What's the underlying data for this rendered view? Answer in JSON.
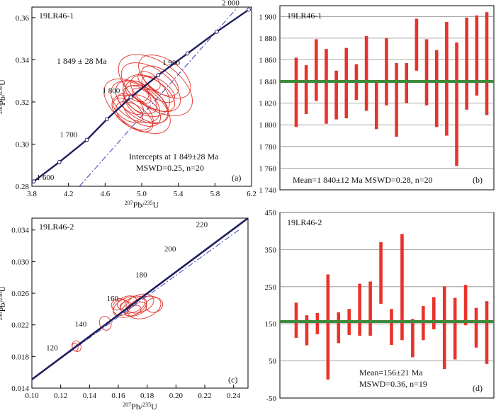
{
  "chart_data": [
    {
      "panel": "a",
      "type": "scatter",
      "sample": "19LR46-1",
      "panel_label": "(a)",
      "xlabel_pre": "207",
      "xlabel_mid": "Pb/",
      "xlabel_pre2": "235",
      "xlabel_post": "U",
      "ylabel_pre": "206",
      "ylabel_mid": "Pb/",
      "ylabel_pre2": "238",
      "ylabel_post": "U",
      "xlim": [
        3.8,
        6.2
      ],
      "ylim": [
        0.28,
        0.365
      ],
      "xticks": [
        3.8,
        4.2,
        4.6,
        5.0,
        5.4,
        5.8,
        6.2
      ],
      "xtick_labels": [
        "3.8",
        "4.2",
        "4.6",
        "5.0",
        "5.4",
        "5.8",
        "6.2"
      ],
      "yticks": [
        0.28,
        0.3,
        0.32,
        0.34,
        0.36
      ],
      "ytick_labels": [
        "0.28",
        "0.30",
        "0.32",
        "0.34",
        "0.36"
      ],
      "age_text": "1 849 ± 28 Ma",
      "intercept_text": "Intercepts at  1 849±28 Ma",
      "mswd_text": "MSWD=0.25, n=20",
      "concordia_points": [
        {
          "label": "1 600",
          "x": 3.82,
          "y": 0.2823
        },
        {
          "label": "",
          "x": 4.1,
          "y": 0.2915
        },
        {
          "label": "1 700",
          "x": 4.4,
          "y": 0.302
        },
        {
          "label": "",
          "x": 4.62,
          "y": 0.3118
        },
        {
          "label": "1 800",
          "x": 4.88,
          "y": 0.3222
        },
        {
          "label": "1 900",
          "x": 5.18,
          "y": 0.3327
        },
        {
          "label": "",
          "x": 5.5,
          "y": 0.343
        },
        {
          "label": "",
          "x": 5.82,
          "y": 0.3533
        },
        {
          "label": "2 000",
          "x": 6.17,
          "y": 0.3638
        }
      ],
      "discordia": {
        "x1": 4.32,
        "y1": 0.28,
        "x2": 6.05,
        "y2": 0.365
      },
      "ellipses": [
        {
          "x": 5.0,
          "y": 0.32,
          "rx": 0.18,
          "ry": 0.014
        },
        {
          "x": 4.95,
          "y": 0.318,
          "rx": 0.22,
          "ry": 0.018
        },
        {
          "x": 5.05,
          "y": 0.323,
          "rx": 0.2,
          "ry": 0.012
        },
        {
          "x": 4.9,
          "y": 0.315,
          "rx": 0.15,
          "ry": 0.011
        },
        {
          "x": 5.1,
          "y": 0.327,
          "rx": 0.2,
          "ry": 0.016
        },
        {
          "x": 5.15,
          "y": 0.328,
          "rx": 0.25,
          "ry": 0.02
        },
        {
          "x": 4.85,
          "y": 0.316,
          "rx": 0.1,
          "ry": 0.008
        },
        {
          "x": 5.2,
          "y": 0.33,
          "rx": 0.12,
          "ry": 0.01
        },
        {
          "x": 4.98,
          "y": 0.321,
          "rx": 0.12,
          "ry": 0.009
        },
        {
          "x": 5.05,
          "y": 0.319,
          "rx": 0.16,
          "ry": 0.012
        },
        {
          "x": 4.92,
          "y": 0.313,
          "rx": 0.12,
          "ry": 0.01
        },
        {
          "x": 5.12,
          "y": 0.324,
          "rx": 0.14,
          "ry": 0.012
        },
        {
          "x": 4.95,
          "y": 0.325,
          "rx": 0.1,
          "ry": 0.006
        },
        {
          "x": 5.0,
          "y": 0.316,
          "rx": 0.14,
          "ry": 0.01
        },
        {
          "x": 5.08,
          "y": 0.33,
          "rx": 0.08,
          "ry": 0.006
        },
        {
          "x": 5.25,
          "y": 0.332,
          "rx": 0.18,
          "ry": 0.014
        },
        {
          "x": 4.88,
          "y": 0.319,
          "rx": 0.08,
          "ry": 0.007
        },
        {
          "x": 5.0,
          "y": 0.323,
          "rx": 0.06,
          "ry": 0.005
        },
        {
          "x": 5.18,
          "y": 0.326,
          "rx": 0.1,
          "ry": 0.009
        },
        {
          "x": 4.93,
          "y": 0.32,
          "rx": 0.18,
          "ry": 0.013
        }
      ]
    },
    {
      "panel": "b",
      "type": "bar",
      "sample": "19LR46-1",
      "panel_label": "(b)",
      "ylim": [
        1740,
        1910
      ],
      "yticks": [
        1740,
        1760,
        1780,
        1800,
        1820,
        1840,
        1860,
        1880,
        1900
      ],
      "ytick_labels": [
        "1 740",
        "1 760",
        "1 780",
        "1 800",
        "1 820",
        "1 840",
        "1 860",
        "1 880",
        "1 900"
      ],
      "mean": 1840,
      "mean_text": "Mean=1 840±12 Ma   MSWD=0.28, n=20",
      "bars": [
        [
          1798,
          1862
        ],
        [
          1810,
          1855
        ],
        [
          1822,
          1879
        ],
        [
          1801,
          1870
        ],
        [
          1805,
          1850
        ],
        [
          1806,
          1871
        ],
        [
          1823,
          1856
        ],
        [
          1813,
          1882
        ],
        [
          1796,
          1840
        ],
        [
          1818,
          1880
        ],
        [
          1789,
          1857
        ],
        [
          1820,
          1857
        ],
        [
          1850,
          1898
        ],
        [
          1818,
          1879
        ],
        [
          1798,
          1869
        ],
        [
          1790,
          1895
        ],
        [
          1762,
          1876
        ],
        [
          1814,
          1899
        ],
        [
          1827,
          1901
        ],
        [
          1809,
          1904
        ]
      ]
    },
    {
      "panel": "c",
      "type": "scatter",
      "sample": "19LR46-2",
      "panel_label": "(c)",
      "xlabel_pre": "207",
      "xlabel_mid": "Pb/",
      "xlabel_pre2": "235",
      "xlabel_post": "U",
      "ylabel_pre": "206",
      "ylabel_mid": "Pb/",
      "ylabel_pre2": "238",
      "ylabel_post": "U",
      "xlim": [
        0.1,
        0.25
      ],
      "ylim": [
        0.014,
        0.0355
      ],
      "xticks": [
        0.1,
        0.12,
        0.14,
        0.16,
        0.18,
        0.2,
        0.22,
        0.24
      ],
      "xtick_labels": [
        "0.10",
        "0.12",
        "0.14",
        "0.16",
        "0.18",
        "0.20",
        "0.22",
        "0.24"
      ],
      "yticks": [
        0.014,
        0.018,
        0.022,
        0.026,
        0.03,
        0.034
      ],
      "ytick_labels": [
        "0.014",
        "0.018",
        "0.022",
        "0.026",
        "0.030",
        "0.034"
      ],
      "concordia_line": {
        "x1": 0.1,
        "y1": 0.0151,
        "x2": 0.25,
        "y2": 0.0355
      },
      "age_labels": [
        {
          "label": "120",
          "x": 0.118,
          "y": 0.0188
        },
        {
          "label": "140",
          "x": 0.138,
          "y": 0.0218
        },
        {
          "label": "160",
          "x": 0.16,
          "y": 0.025
        },
        {
          "label": "180",
          "x": 0.18,
          "y": 0.028
        },
        {
          "label": "200",
          "x": 0.2,
          "y": 0.0313
        },
        {
          "label": "220",
          "x": 0.222,
          "y": 0.0344
        }
      ],
      "ellipses": [
        {
          "x": 0.131,
          "y": 0.0193,
          "rx": 0.003,
          "ry": 0.0007
        },
        {
          "x": 0.13,
          "y": 0.0192,
          "rx": 0.002,
          "ry": 0.0005
        },
        {
          "x": 0.151,
          "y": 0.0222,
          "rx": 0.004,
          "ry": 0.0009
        },
        {
          "x": 0.168,
          "y": 0.0243,
          "rx": 0.012,
          "ry": 0.0012
        },
        {
          "x": 0.17,
          "y": 0.0245,
          "rx": 0.009,
          "ry": 0.0009
        },
        {
          "x": 0.162,
          "y": 0.0242,
          "rx": 0.006,
          "ry": 0.001
        },
        {
          "x": 0.175,
          "y": 0.0247,
          "rx": 0.01,
          "ry": 0.0011
        },
        {
          "x": 0.166,
          "y": 0.0248,
          "rx": 0.007,
          "ry": 0.0008
        },
        {
          "x": 0.172,
          "y": 0.024,
          "rx": 0.008,
          "ry": 0.0008
        },
        {
          "x": 0.16,
          "y": 0.0246,
          "rx": 0.005,
          "ry": 0.0007
        },
        {
          "x": 0.178,
          "y": 0.0242,
          "rx": 0.012,
          "ry": 0.0013
        },
        {
          "x": 0.165,
          "y": 0.0244,
          "rx": 0.004,
          "ry": 0.0005
        },
        {
          "x": 0.17,
          "y": 0.0238,
          "rx": 0.006,
          "ry": 0.0006
        },
        {
          "x": 0.185,
          "y": 0.0245,
          "rx": 0.006,
          "ry": 0.0009
        }
      ]
    },
    {
      "panel": "d",
      "type": "bar",
      "sample": "19LR46-2",
      "panel_label": "(d)",
      "ylim": [
        -50,
        450
      ],
      "yticks": [
        -50,
        50,
        150,
        250,
        350,
        450
      ],
      "ytick_labels": [
        "-50",
        "50",
        "150",
        "250",
        "350",
        "450"
      ],
      "mean": 156,
      "mean_text": "Mean=156±21 Ma",
      "mswd_text": "MSWD=0.36, n=19",
      "bars": [
        [
          112,
          207
        ],
        [
          92,
          173
        ],
        [
          122,
          179
        ],
        [
          0,
          283
        ],
        [
          98,
          181
        ],
        [
          120,
          190
        ],
        [
          118,
          258
        ],
        [
          118,
          264
        ],
        [
          204,
          370
        ],
        [
          93,
          190
        ],
        [
          106,
          392
        ],
        [
          60,
          163
        ],
        [
          106,
          198
        ],
        [
          135,
          222
        ],
        [
          28,
          251
        ],
        [
          54,
          220
        ],
        [
          146,
          255
        ],
        [
          86,
          193
        ],
        [
          42,
          211
        ]
      ]
    }
  ]
}
